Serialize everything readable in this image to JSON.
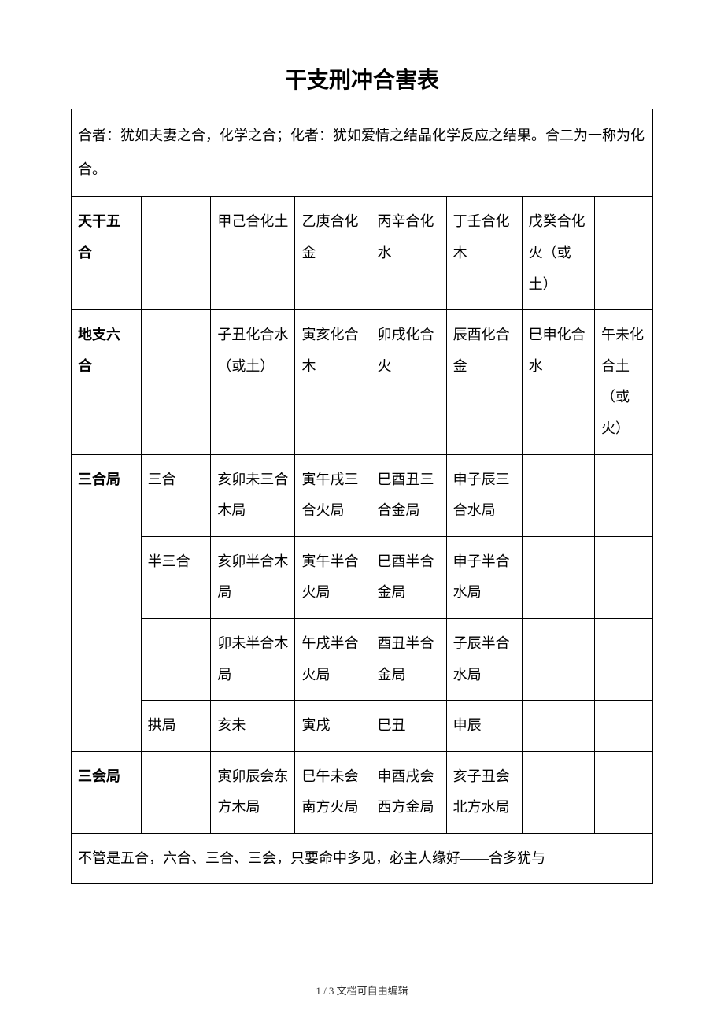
{
  "title": "干支刑冲合害表",
  "intro": "合者：犹如夫妻之合，化学之合；化者：犹如爱情之结晶化学反应之结果。合二为一称为化合。",
  "rows": {
    "tiangan": {
      "label": "天干五合",
      "c1": "",
      "c2": "甲己合化土",
      "c3": "乙庚合化金",
      "c4": "丙辛合化水",
      "c5": "丁壬合化木",
      "c6": "戊癸合化火（或土）",
      "c7": ""
    },
    "dizhi": {
      "label": "地支六合",
      "c1": "",
      "c2": "子丑化合水（或土）",
      "c3": "寅亥化合木",
      "c4": "卯戌化合火",
      "c5": "辰酉化合金",
      "c6": "巳申化合水",
      "c7": "午未化合土（或火）"
    },
    "sanhe": {
      "label": "三合局",
      "r1": {
        "c1": "三合",
        "c2": "亥卯未三合木局",
        "c3": "寅午戌三合火局",
        "c4": "巳酉丑三合金局",
        "c5": "申子辰三合水局"
      },
      "r2": {
        "c1": "半三合",
        "c2": "亥卯半合木局",
        "c3": "寅午半合火局",
        "c4": "巳酉半合金局",
        "c5": "申子半合水局"
      },
      "r3": {
        "c1": "",
        "c2": "卯未半合木局",
        "c3": "午戌半合火局",
        "c4": "酉丑半合金局",
        "c5": "子辰半合水局"
      },
      "r4": {
        "c1": "拱局",
        "c2": "亥未",
        "c3": "寅戌",
        "c4": "巳丑",
        "c5": "申辰"
      }
    },
    "sanhui": {
      "label": "三会局",
      "c1": "",
      "c2": "寅卯辰会东方木局",
      "c3": "巳午未会南方火局",
      "c4": "申酉戌会西方金局",
      "c5": "亥子丑会北方水局"
    }
  },
  "bottom": "不管是五合，六合、三合、三会，只要命中多见，必主人缘好——合多犹与",
  "footer": "1 / 3 文档可自由编辑",
  "col_widths": {
    "c0": "12%",
    "c1": "12%",
    "c2": "14.5%",
    "c3": "13%",
    "c4": "13%",
    "c5": "13%",
    "c6": "12.5%",
    "c7": "10%"
  }
}
